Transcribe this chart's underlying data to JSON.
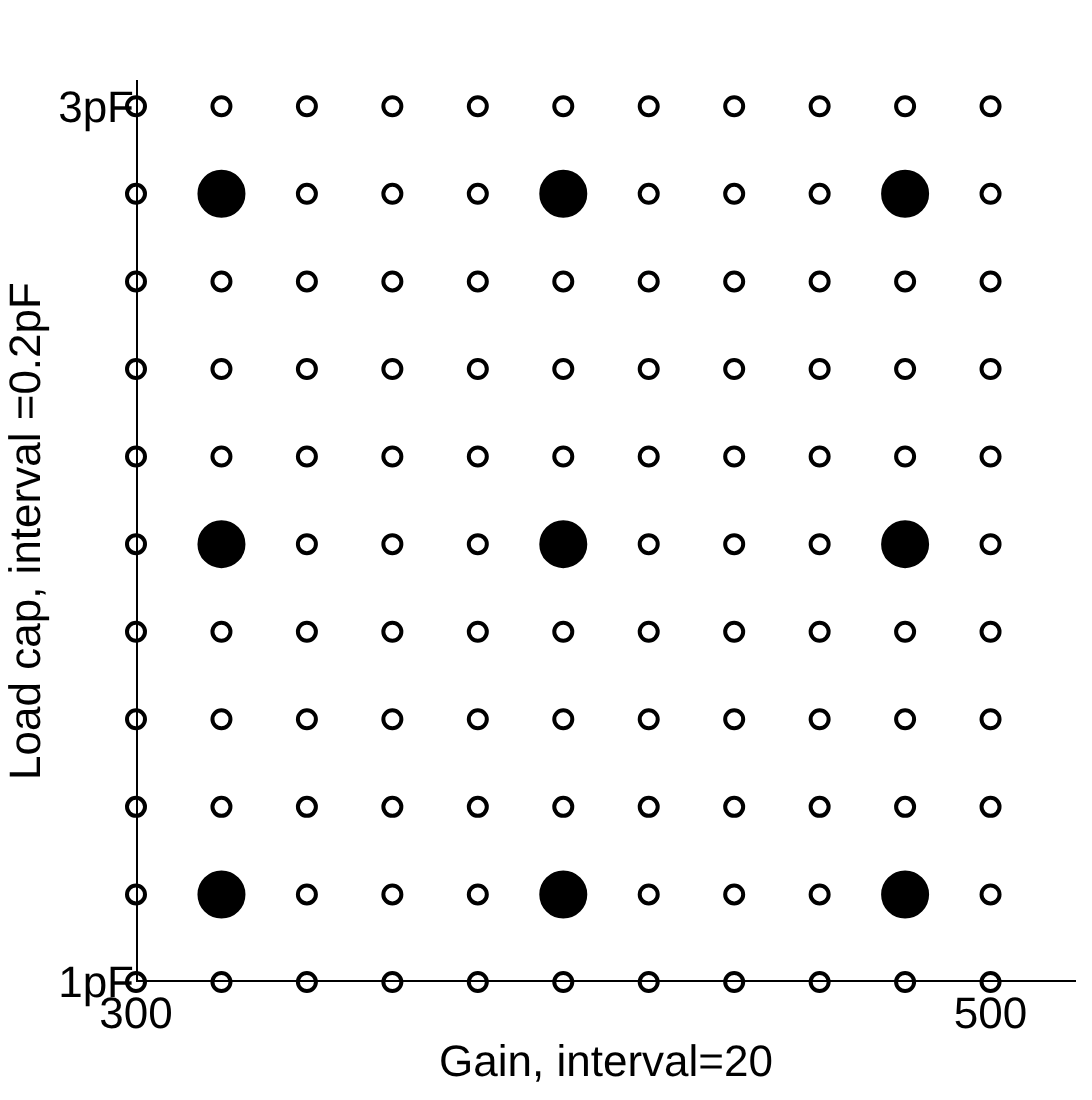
{
  "chart_data": {
    "type": "scatter",
    "xlabel": "Gain, interval=20",
    "ylabel": "Load cap, interval =0.2pF",
    "xlim": [
      300,
      520
    ],
    "ylim": [
      1,
      3.06
    ],
    "xticks": [
      300,
      500
    ],
    "yticks": [
      {
        "value": 1,
        "label": "1pF"
      },
      {
        "value": 3,
        "label": "3pF"
      }
    ],
    "series": [
      {
        "color": "#000000",
        "marker": "circle-open",
        "x": [
          300,
          320,
          340,
          360,
          380,
          400,
          420,
          440,
          460,
          480,
          500,
          300,
          340,
          360,
          380,
          420,
          440,
          460,
          500,
          300,
          320,
          340,
          360,
          380,
          400,
          420,
          440,
          460,
          480,
          500,
          300,
          320,
          340,
          360,
          380,
          400,
          420,
          440,
          460,
          480,
          500,
          300,
          320,
          340,
          360,
          380,
          400,
          420,
          440,
          460,
          480,
          500,
          300,
          340,
          360,
          380,
          420,
          440,
          460,
          500,
          300,
          320,
          340,
          360,
          380,
          400,
          420,
          440,
          460,
          480,
          500,
          300,
          320,
          340,
          360,
          380,
          400,
          420,
          440,
          460,
          480,
          500,
          300,
          320,
          340,
          360,
          380,
          400,
          420,
          440,
          460,
          480,
          500,
          300,
          340,
          360,
          380,
          420,
          440,
          460,
          500,
          300,
          320,
          340,
          360,
          380,
          400,
          420,
          440,
          460,
          480,
          500
        ],
        "values": [
          1,
          1,
          1,
          1,
          1,
          1,
          1,
          1,
          1,
          1,
          1,
          1.2,
          1.2,
          1.2,
          1.2,
          1.2,
          1.2,
          1.2,
          1.2,
          1.4,
          1.4,
          1.4,
          1.4,
          1.4,
          1.4,
          1.4,
          1.4,
          1.4,
          1.4,
          1.4,
          1.6,
          1.6,
          1.6,
          1.6,
          1.6,
          1.6,
          1.6,
          1.6,
          1.6,
          1.6,
          1.6,
          1.8,
          1.8,
          1.8,
          1.8,
          1.8,
          1.8,
          1.8,
          1.8,
          1.8,
          1.8,
          1.8,
          2,
          2,
          2,
          2,
          2,
          2,
          2,
          2,
          2.2,
          2.2,
          2.2,
          2.2,
          2.2,
          2.2,
          2.2,
          2.2,
          2.2,
          2.2,
          2.2,
          2.4,
          2.4,
          2.4,
          2.4,
          2.4,
          2.4,
          2.4,
          2.4,
          2.4,
          2.4,
          2.4,
          2.6,
          2.6,
          2.6,
          2.6,
          2.6,
          2.6,
          2.6,
          2.6,
          2.6,
          2.6,
          2.6,
          2.8,
          2.8,
          2.8,
          2.8,
          2.8,
          2.8,
          2.8,
          2.8,
          3,
          3,
          3,
          3,
          3,
          3,
          3,
          3,
          3,
          3,
          3
        ]
      },
      {
        "color": "#000000",
        "marker": "circle",
        "x": [
          320,
          400,
          480,
          320,
          400,
          480,
          320,
          400,
          480
        ],
        "values": [
          1.2,
          1.2,
          1.2,
          2,
          2,
          2,
          2.8,
          2.8,
          2.8
        ]
      }
    ]
  }
}
